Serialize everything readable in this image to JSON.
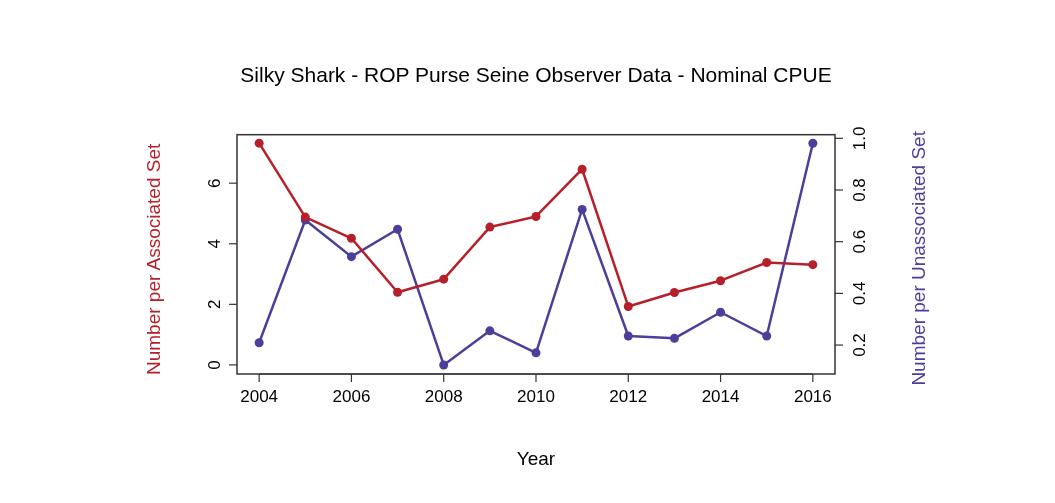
{
  "chart_data": {
    "type": "line",
    "title": "Silky Shark - ROP Purse Seine Observer Data - Nominal CPUE",
    "xlabel": "Year",
    "ylabel": "Number per Associated Set",
    "y2label": "Number per Unassociated Set",
    "x": [
      2004,
      2005,
      2006,
      2007,
      2008,
      2009,
      2010,
      2011,
      2012,
      2013,
      2014,
      2015,
      2016
    ],
    "series": [
      {
        "color": "#b5202a",
        "values": [
          7.32,
          4.88,
          4.18,
          2.4,
          2.83,
          4.55,
          4.9,
          6.46,
          1.93,
          2.39,
          2.78,
          3.38,
          3.31
        ]
      },
      {
        "color": "#4b3f9a",
        "axis": "y2",
        "values": [
          0.209,
          0.684,
          0.542,
          0.648,
          0.123,
          0.255,
          0.17,
          0.725,
          0.235,
          0.226,
          0.327,
          0.235,
          0.981
        ]
      }
    ],
    "xlim": [
      2003.52,
      2016.48
    ],
    "xticks": [
      2004,
      2006,
      2008,
      2010,
      2012,
      2014,
      2016
    ],
    "ylim": [
      -0.3,
      7.6
    ],
    "yticks": [
      0,
      2,
      4,
      6
    ],
    "y2lim": [
      0.088,
      1.014
    ],
    "y2ticks": [
      0.2,
      0.4,
      0.6,
      0.8,
      {
        "value": 1,
        "label": "1.0"
      }
    ],
    "marker": "circle",
    "line_style": "solid"
  }
}
